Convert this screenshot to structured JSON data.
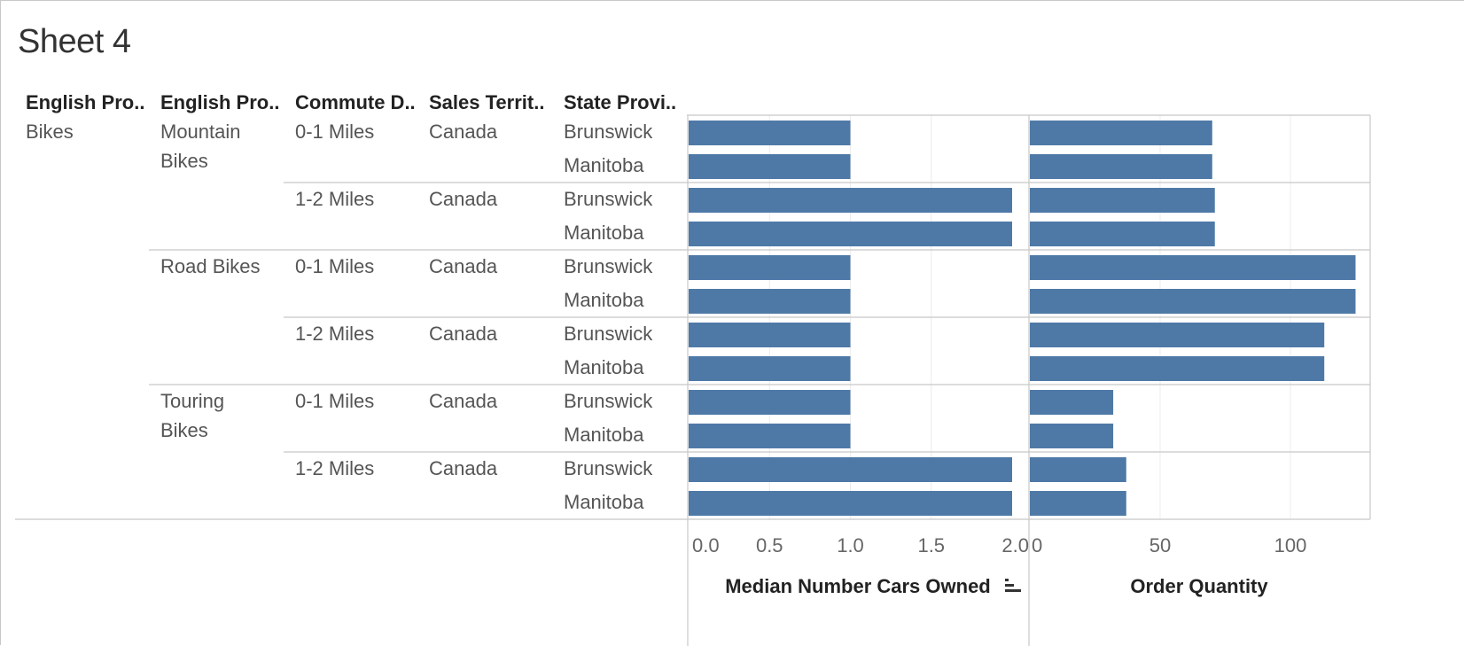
{
  "sheet": {
    "title": "Sheet 4"
  },
  "headers": [
    "English Pro..",
    "English Pro..",
    "Commute D..",
    "Sales Territ..",
    "State Provi.."
  ],
  "colors": {
    "bar": "#4e79a7"
  },
  "chart_data": {
    "type": "bar",
    "orientation": "horizontal",
    "rows": [
      {
        "category": "Bikes",
        "subcategory": "Mountain Bikes",
        "commute": "0-1 Miles",
        "territory": "Canada",
        "state": "Brunswick"
      },
      {
        "category": "Bikes",
        "subcategory": "Mountain Bikes",
        "commute": "0-1 Miles",
        "territory": "Canada",
        "state": "Manitoba"
      },
      {
        "category": "Bikes",
        "subcategory": "Mountain Bikes",
        "commute": "1-2 Miles",
        "territory": "Canada",
        "state": "Brunswick"
      },
      {
        "category": "Bikes",
        "subcategory": "Mountain Bikes",
        "commute": "1-2 Miles",
        "territory": "Canada",
        "state": "Manitoba"
      },
      {
        "category": "Bikes",
        "subcategory": "Road Bikes",
        "commute": "0-1 Miles",
        "territory": "Canada",
        "state": "Brunswick"
      },
      {
        "category": "Bikes",
        "subcategory": "Road Bikes",
        "commute": "0-1 Miles",
        "territory": "Canada",
        "state": "Manitoba"
      },
      {
        "category": "Bikes",
        "subcategory": "Road Bikes",
        "commute": "1-2 Miles",
        "territory": "Canada",
        "state": "Brunswick"
      },
      {
        "category": "Bikes",
        "subcategory": "Road Bikes",
        "commute": "1-2 Miles",
        "territory": "Canada",
        "state": "Manitoba"
      },
      {
        "category": "Bikes",
        "subcategory": "Touring Bikes",
        "commute": "0-1 Miles",
        "territory": "Canada",
        "state": "Brunswick"
      },
      {
        "category": "Bikes",
        "subcategory": "Touring Bikes",
        "commute": "0-1 Miles",
        "territory": "Canada",
        "state": "Manitoba"
      },
      {
        "category": "Bikes",
        "subcategory": "Touring Bikes",
        "commute": "1-2 Miles",
        "territory": "Canada",
        "state": "Brunswick"
      },
      {
        "category": "Bikes",
        "subcategory": "Touring Bikes",
        "commute": "1-2 Miles",
        "territory": "Canada",
        "state": "Manitoba"
      }
    ],
    "panels": [
      {
        "measure": "Median Number Cars Owned",
        "values": [
          1,
          1,
          2,
          2,
          1,
          1,
          1,
          1,
          1,
          1,
          2,
          2
        ],
        "ticks": [
          "0.0",
          "0.5",
          "1.0",
          "1.5",
          "2.0"
        ],
        "xlim": [
          0,
          2
        ],
        "sort_icon": true,
        "grid": true
      },
      {
        "measure": "Order Quantity",
        "values": [
          70,
          70,
          71,
          71,
          125,
          125,
          113,
          113,
          32,
          32,
          37,
          37
        ],
        "ticks": [
          "0",
          "50",
          "100"
        ],
        "xlim": [
          0,
          132
        ],
        "sort_icon": false,
        "grid": true
      }
    ]
  }
}
